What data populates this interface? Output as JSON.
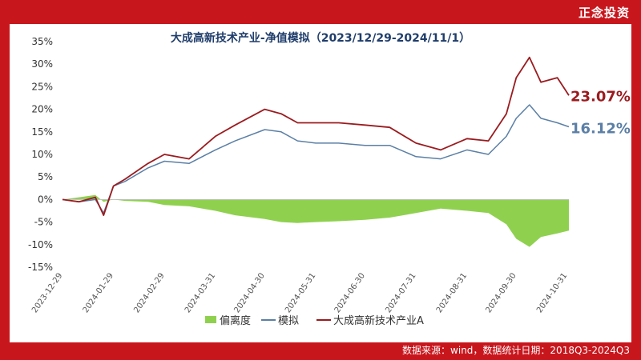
{
  "brand": "正念投资",
  "source_note": "数据来源：wind，数据统计日期：2018Q3-2024Q3",
  "colors": {
    "frame": "#c8161d",
    "fund": "#9b1b1f",
    "sim": "#5b7fa6",
    "deviation": "#8fd14f",
    "grid": "#d9d9d9"
  },
  "chart_data": {
    "type": "line",
    "title": "大成高新技术产业-净值模拟（2023/12/29-2024/11/1）",
    "ylim": [
      -15,
      35
    ],
    "yticks": [
      35,
      30,
      25,
      20,
      15,
      10,
      5,
      0,
      -5,
      -10,
      -15
    ],
    "ytick_labels": [
      "35%",
      "30%",
      "25%",
      "20%",
      "15%",
      "10%",
      "5%",
      "0%",
      "-5%",
      "-10%",
      "-15%"
    ],
    "x_tick_labels": [
      "2023-12-29",
      "2024-01-29",
      "2024-02-29",
      "2024-03-31",
      "2024-04-30",
      "2024-05-31",
      "2024-06-30",
      "2024-07-31",
      "2024-08-31",
      "2024-09-30",
      "2024-10-31"
    ],
    "x": [
      "2023-12-29",
      "2024-01-08",
      "2024-01-18",
      "2024-01-23",
      "2024-01-29",
      "2024-02-05",
      "2024-02-19",
      "2024-02-29",
      "2024-03-15",
      "2024-03-31",
      "2024-04-12",
      "2024-04-30",
      "2024-05-10",
      "2024-05-20",
      "2024-05-31",
      "2024-06-14",
      "2024-06-30",
      "2024-07-15",
      "2024-07-31",
      "2024-08-15",
      "2024-08-31",
      "2024-09-13",
      "2024-09-24",
      "2024-09-30",
      "2024-10-08",
      "2024-10-15",
      "2024-10-25",
      "2024-11-01"
    ],
    "series": [
      {
        "name": "偏离度",
        "type": "area",
        "values": [
          0,
          0.5,
          1,
          -0.5,
          0,
          -0.3,
          -0.5,
          -1.2,
          -1.5,
          -2.5,
          -3.5,
          -4.3,
          -5,
          -5.2,
          -5,
          -4.8,
          -4.5,
          -4,
          -3,
          -2,
          -2.5,
          -3,
          -5.5,
          -8.7,
          -10.5,
          -8.3,
          -7.5,
          -6.9
        ]
      },
      {
        "name": "模拟",
        "type": "line",
        "values": [
          0,
          -0.5,
          0,
          -3,
          3,
          4,
          7,
          8.5,
          8,
          11,
          13,
          15.5,
          15,
          13,
          12.5,
          12.5,
          12,
          12,
          9.5,
          9,
          11,
          10,
          14,
          18,
          21,
          18,
          17,
          16.12
        ]
      },
      {
        "name": "大成高新技术产业A",
        "type": "line",
        "values": [
          0,
          -0.5,
          0.5,
          -3.5,
          3,
          4.5,
          8,
          10,
          9,
          14,
          16.5,
          20,
          19,
          17,
          17,
          17,
          16.5,
          16,
          12.5,
          11,
          13.5,
          13,
          19,
          27,
          31.5,
          26,
          27,
          23.07
        ]
      }
    ],
    "end_labels": [
      "23.07%",
      "16.12%"
    ],
    "legend": {
      "position": "bottom",
      "items": [
        "偏离度",
        "模拟",
        "大成高新技术产业A"
      ]
    },
    "grid": false
  }
}
